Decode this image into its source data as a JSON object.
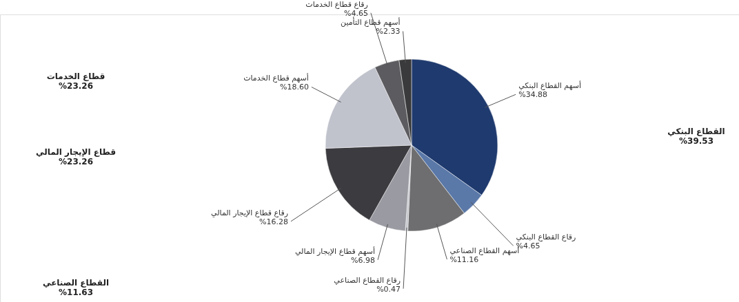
{
  "chart_data": {
    "type": "pie",
    "categories": [
      "أسهم القطاع البنكي",
      "رقاع القطاع البنكي",
      "أسهم القطاع الصناعي",
      "رقاع القطاع الصناعي",
      "أسهم قطاع الإيجار المالي",
      "رقاع قطاع الإيجار المالي",
      "أسهم قطاع الخدمات",
      "رقاع قطاع الخدمات",
      "أسهم قطاع التأمين"
    ],
    "values": [
      34.88,
      4.65,
      11.16,
      0.47,
      6.98,
      16.28,
      18.6,
      4.65,
      2.33
    ],
    "value_labels": [
      "%34.88",
      "%4.65",
      "%11.16",
      "%0.47",
      "%6.98",
      "%16.28",
      "%18.60",
      "%4.65",
      "%2.33"
    ],
    "colors": [
      "#1f3a6e",
      "#5a78a8",
      "#6e6e70",
      "#c4c6cc",
      "#9a9aa2",
      "#3c3c40",
      "#c0c2cc",
      "#5c5c60",
      "#3a3a3c"
    ],
    "annotations": [
      "القطاع البنكي\n%39.53",
      "قطاع الخدمات\n%23.26",
      "قطاع الإيجار المالي\n%23.26",
      "القطاع الصناعي\n%11.63"
    ],
    "legend": false
  }
}
